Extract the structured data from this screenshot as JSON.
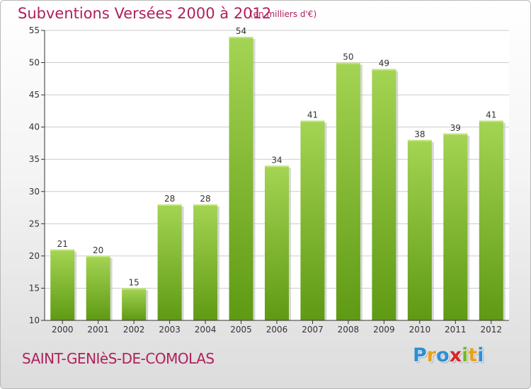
{
  "title": "Subventions Versées 2000 à 2012",
  "subtitle": "(en milliers d'€)",
  "commune": "SAINT-GENIèS-DE-COMOLAS",
  "logo": {
    "text": "Proxiti",
    "letters": [
      {
        "ch": "P",
        "color": "#2e8fd6"
      },
      {
        "ch": "r",
        "color": "#e8a21a"
      },
      {
        "ch": "o",
        "color": "#2e8fd6"
      },
      {
        "ch": "x",
        "color": "#d8262a"
      },
      {
        "ch": "i",
        "color": "#74b82a"
      },
      {
        "ch": "t",
        "color": "#e8a21a"
      },
      {
        "ch": "i",
        "color": "#2e8fd6"
      }
    ]
  },
  "colors": {
    "title": "#b0205c",
    "bar_top": "#a4d453",
    "bar_bottom": "#5f9a14",
    "grid": "#cccccc",
    "axis": "#333333"
  },
  "chart_data": {
    "type": "bar",
    "categories": [
      "2000",
      "2001",
      "2002",
      "2003",
      "2004",
      "2005",
      "2006",
      "2007",
      "2008",
      "2009",
      "2010",
      "2011",
      "2012"
    ],
    "values": [
      21,
      20,
      15,
      28,
      28,
      54,
      34,
      41,
      50,
      49,
      38,
      39,
      41
    ],
    "ylim": [
      10,
      55
    ],
    "yticks": [
      10,
      15,
      20,
      25,
      30,
      35,
      40,
      45,
      50,
      55
    ],
    "grid": true,
    "data_labels": true
  }
}
